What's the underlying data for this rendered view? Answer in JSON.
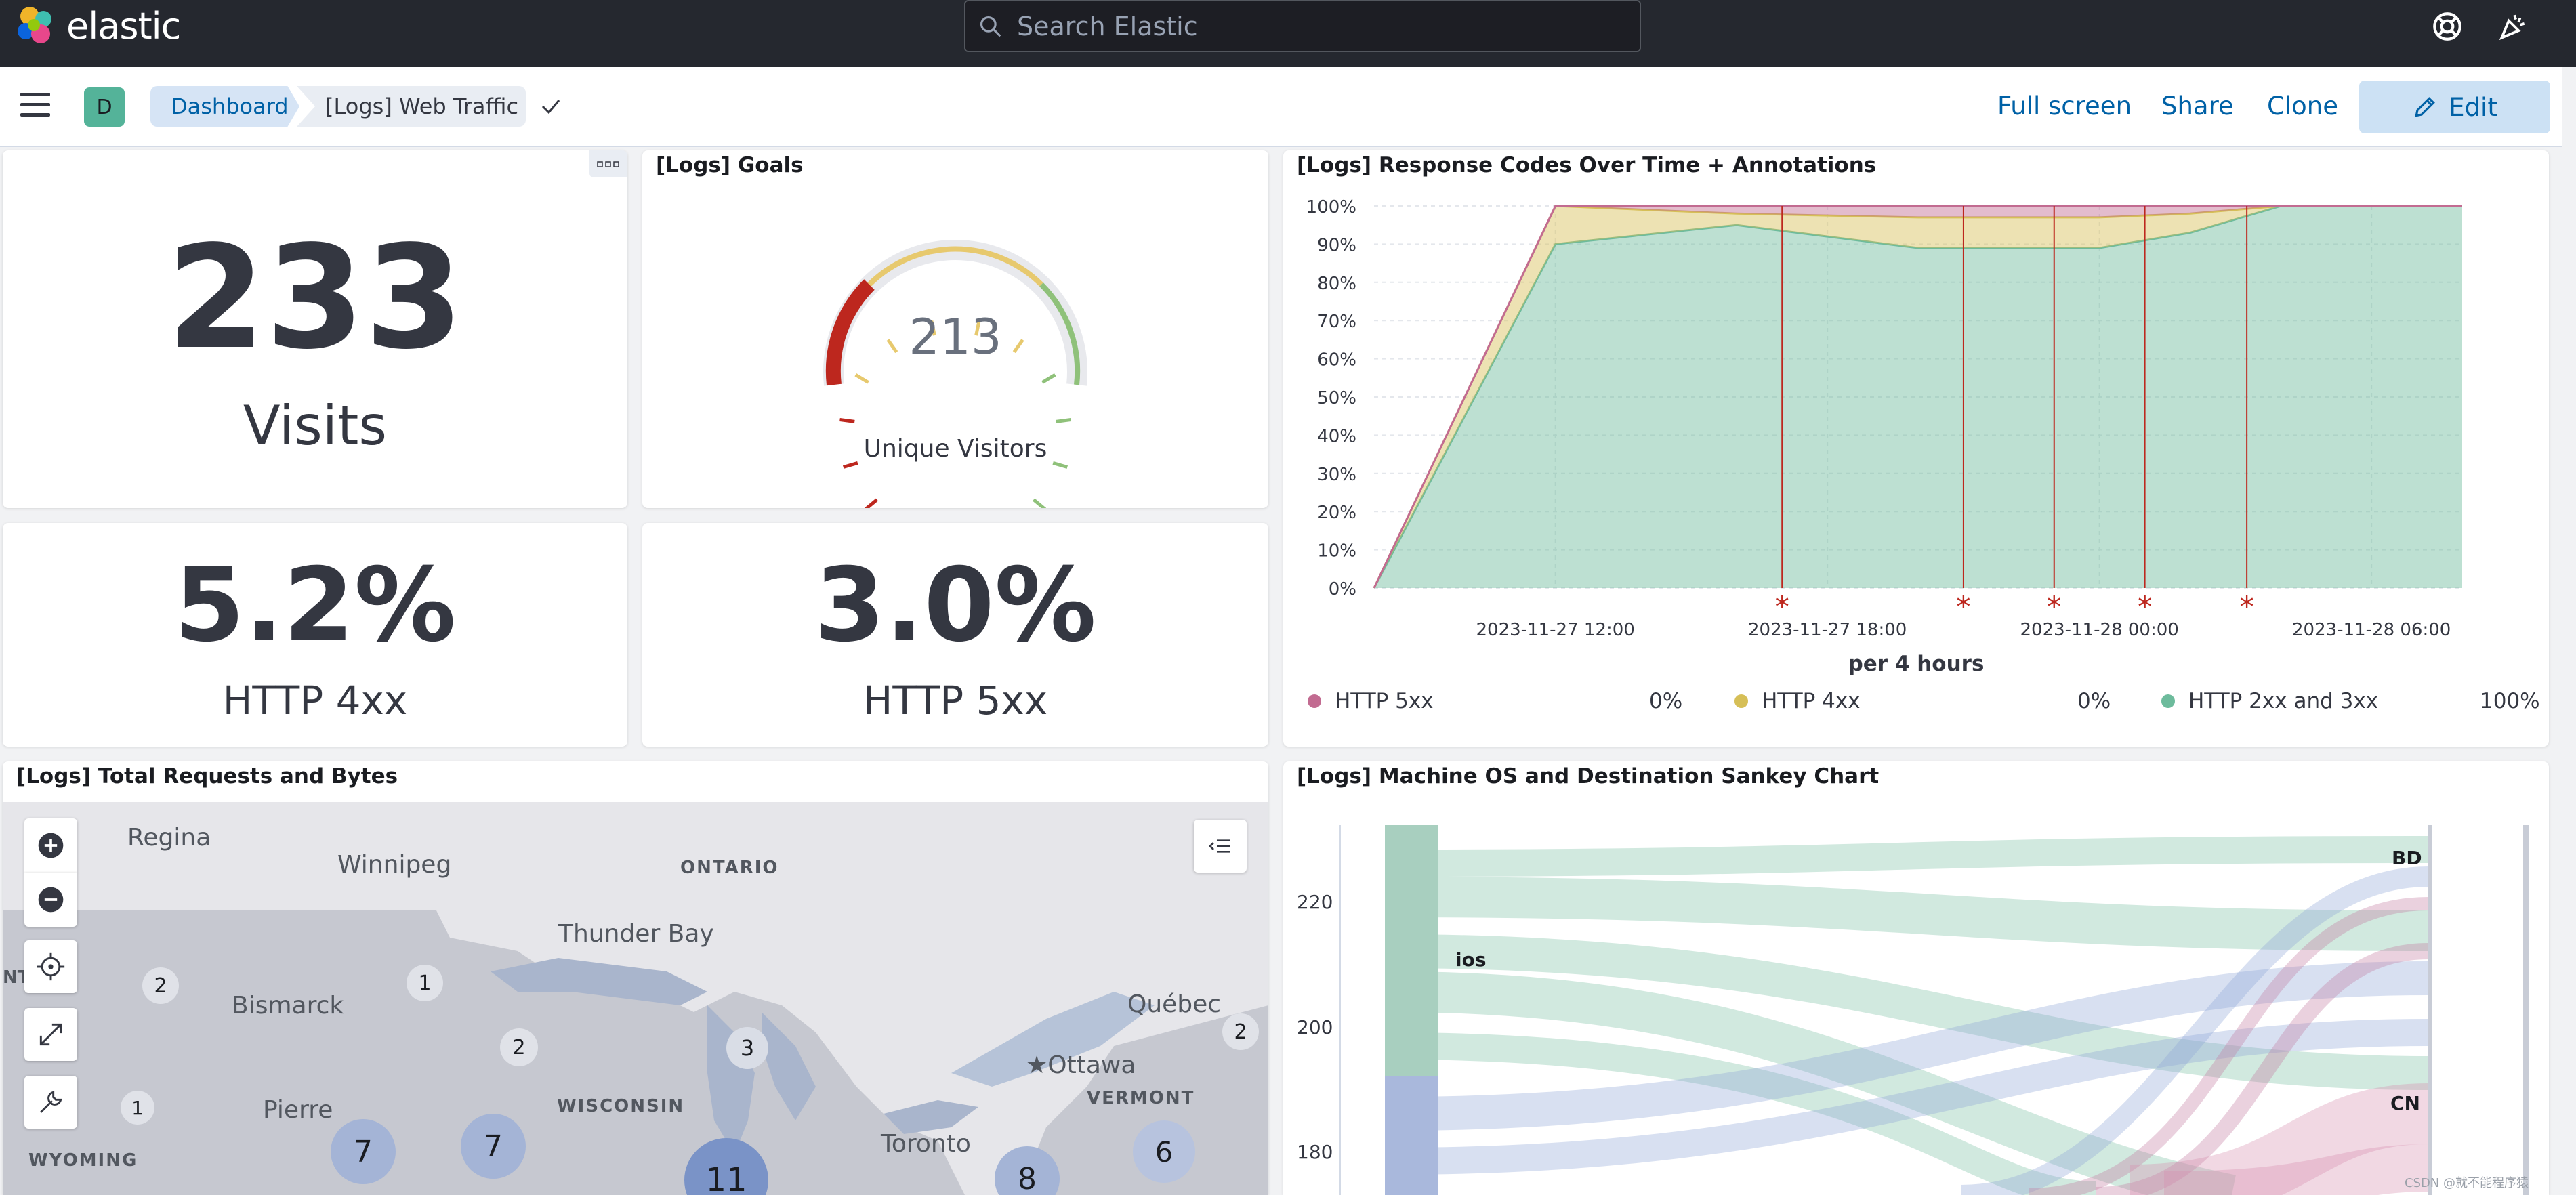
{
  "app": {
    "name": "elastic"
  },
  "search": {
    "placeholder": "Search Elastic"
  },
  "breadcrumbs": [
    {
      "label": "Dashboard"
    },
    {
      "label": "[Logs] Web Traffic"
    }
  ],
  "avatar": {
    "initial": "D"
  },
  "header_actions": {
    "full_screen": "Full screen",
    "share": "Share",
    "clone": "Clone",
    "edit": "Edit"
  },
  "metrics": {
    "visits": {
      "value": "233",
      "label": "Visits"
    },
    "http4xx": {
      "value": "5.2%",
      "label": "HTTP 4xx"
    },
    "http5xx": {
      "value": "3.0%",
      "label": "HTTP 5xx"
    }
  },
  "goals": {
    "title": "[Logs] Goals",
    "value": "213",
    "label": "Unique Visitors"
  },
  "response_codes": {
    "title": "[Logs] Response Codes Over Time + Annotations",
    "xlabel": "per 4 hours",
    "legend": [
      {
        "name": "HTTP 5xx",
        "value": "0%",
        "color": "#c26b91"
      },
      {
        "name": "HTTP 4xx",
        "value": "0%",
        "color": "#d6bf57"
      },
      {
        "name": "HTTP 2xx and 3xx",
        "value": "100%",
        "color": "#6dbb9c"
      }
    ]
  },
  "chart_data": {
    "type": "area",
    "title": "[Logs] Response Codes Over Time + Annotations",
    "xlabel": "per 4 hours",
    "ylabel": "",
    "x_tick_labels": [
      "2023-11-27 12:00",
      "2023-11-27 18:00",
      "2023-11-28 00:00",
      "2023-11-28 06:00"
    ],
    "y_tick_labels": [
      "0%",
      "10%",
      "20%",
      "30%",
      "40%",
      "50%",
      "60%",
      "70%",
      "80%",
      "90%",
      "100%"
    ],
    "ylim": [
      0,
      100
    ],
    "stacked": true,
    "x": [
      "2023-11-27 08:00",
      "2023-11-27 12:00",
      "2023-11-27 16:00",
      "2023-11-27 20:00",
      "2023-11-28 00:00",
      "2023-11-28 02:00",
      "2023-11-28 04:00",
      "2023-11-28 08:00"
    ],
    "series": [
      {
        "name": "HTTP 2xx and 3xx",
        "color": "#6dbb9c",
        "values": [
          0,
          90,
          95,
          89,
          89,
          93,
          100,
          100
        ]
      },
      {
        "name": "HTTP 4xx",
        "color": "#d6bf57",
        "values": [
          0,
          10,
          3,
          8,
          8,
          5,
          0,
          0
        ]
      },
      {
        "name": "HTTP 5xx",
        "color": "#c26b91",
        "values": [
          0,
          0,
          2,
          3,
          3,
          2,
          0,
          0
        ]
      }
    ],
    "annotation_marker": "*",
    "annotations": [
      "2023-11-27 17:00",
      "2023-11-27 21:00",
      "2023-11-27 23:00",
      "2023-11-28 01:00",
      "2023-11-28 03:15"
    ]
  },
  "map": {
    "title": "[Logs] Total Requests and Bytes",
    "places": [
      {
        "label": "Regina"
      },
      {
        "label": "Winnipeg"
      },
      {
        "label": "ONTARIO"
      },
      {
        "label": "Thunder Bay"
      },
      {
        "label": "Bismarck"
      },
      {
        "label": "Québec"
      },
      {
        "label": "Ottawa"
      },
      {
        "label": "Pierre"
      },
      {
        "label": "WISCONSIN"
      },
      {
        "label": "VERMONT"
      },
      {
        "label": "Toronto"
      },
      {
        "label": "WYOMING"
      },
      {
        "label": "NT"
      }
    ],
    "clusters": [
      "2",
      "1",
      "2",
      "3",
      "2",
      "1",
      "7",
      "7",
      "11",
      "8",
      "6"
    ]
  },
  "sankey": {
    "title": "[Logs] Machine OS and Destination Sankey Chart",
    "y_ticks": [
      "220",
      "200",
      "180"
    ],
    "nodes": {
      "left": "ios",
      "right_top": "BD",
      "right_mid": "CN"
    }
  },
  "watermark": "CSDN @就不能程序猿"
}
